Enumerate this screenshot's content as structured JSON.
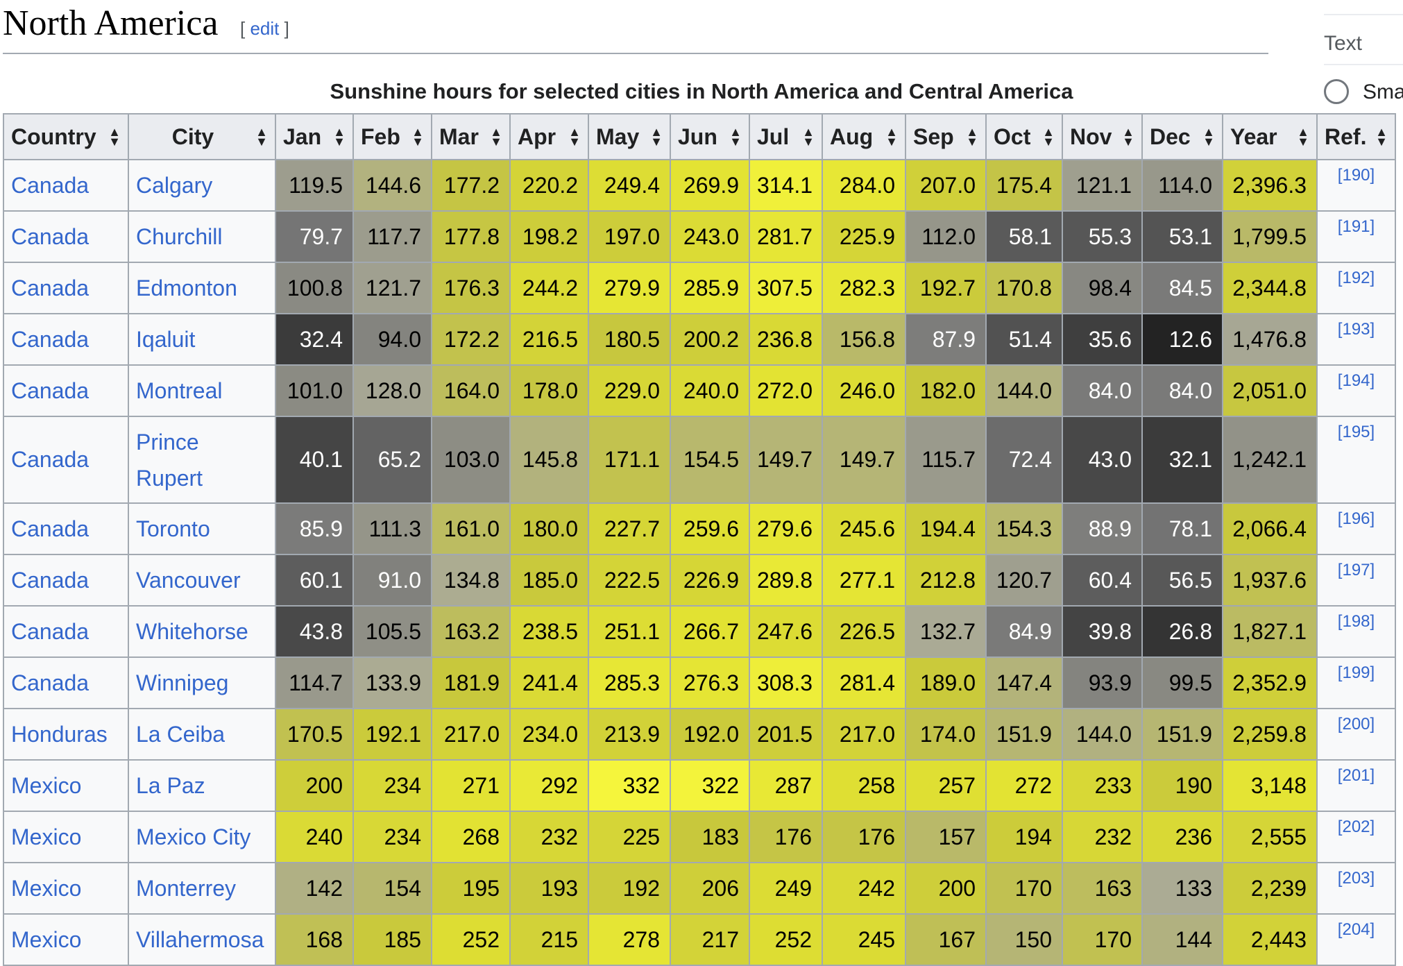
{
  "section": {
    "title": "North America",
    "edit_open": "[ ",
    "edit_label": "edit",
    "edit_close": " ]"
  },
  "side": {
    "text_label": "Text",
    "small_label": "Sma"
  },
  "table": {
    "caption": "Sunshine hours for selected cities in North America and Central America",
    "headers": [
      "Country",
      "City",
      "Jan",
      "Feb",
      "Mar",
      "Apr",
      "May",
      "Jun",
      "Jul",
      "Aug",
      "Sep",
      "Oct",
      "Nov",
      "Dec",
      "Year",
      "Ref."
    ],
    "rows": [
      {
        "country": "Canada",
        "city": "Calgary",
        "values": [
          "119.5",
          "144.6",
          "177.2",
          "220.2",
          "249.4",
          "269.9",
          "314.1",
          "284.0",
          "207.0",
          "175.4",
          "121.1",
          "114.0",
          "2,396.3"
        ],
        "ref": "[190]"
      },
      {
        "country": "Canada",
        "city": "Churchill",
        "values": [
          "79.7",
          "117.7",
          "177.8",
          "198.2",
          "197.0",
          "243.0",
          "281.7",
          "225.9",
          "112.0",
          "58.1",
          "55.3",
          "53.1",
          "1,799.5"
        ],
        "ref": "[191]"
      },
      {
        "country": "Canada",
        "city": "Edmonton",
        "values": [
          "100.8",
          "121.7",
          "176.3",
          "244.2",
          "279.9",
          "285.9",
          "307.5",
          "282.3",
          "192.7",
          "170.8",
          "98.4",
          "84.5",
          "2,344.8"
        ],
        "ref": "[192]"
      },
      {
        "country": "Canada",
        "city": "Iqaluit",
        "values": [
          "32.4",
          "94.0",
          "172.2",
          "216.5",
          "180.5",
          "200.2",
          "236.8",
          "156.8",
          "87.9",
          "51.4",
          "35.6",
          "12.6",
          "1,476.8"
        ],
        "ref": "[193]"
      },
      {
        "country": "Canada",
        "city": "Montreal",
        "values": [
          "101.0",
          "128.0",
          "164.0",
          "178.0",
          "229.0",
          "240.0",
          "272.0",
          "246.0",
          "182.0",
          "144.0",
          "84.0",
          "84.0",
          "2,051.0"
        ],
        "ref": "[194]"
      },
      {
        "country": "Canada",
        "city": "Prince Rupert",
        "city_line1": "Prince",
        "city_line2": "Rupert",
        "values": [
          "40.1",
          "65.2",
          "103.0",
          "145.8",
          "171.1",
          "154.5",
          "149.7",
          "149.7",
          "115.7",
          "72.4",
          "43.0",
          "32.1",
          "1,242.1"
        ],
        "ref": "[195]"
      },
      {
        "country": "Canada",
        "city": "Toronto",
        "values": [
          "85.9",
          "111.3",
          "161.0",
          "180.0",
          "227.7",
          "259.6",
          "279.6",
          "245.6",
          "194.4",
          "154.3",
          "88.9",
          "78.1",
          "2,066.4"
        ],
        "ref": "[196]"
      },
      {
        "country": "Canada",
        "city": "Vancouver",
        "values": [
          "60.1",
          "91.0",
          "134.8",
          "185.0",
          "222.5",
          "226.9",
          "289.8",
          "277.1",
          "212.8",
          "120.7",
          "60.4",
          "56.5",
          "1,937.6"
        ],
        "ref": "[197]"
      },
      {
        "country": "Canada",
        "city": "Whitehorse",
        "values": [
          "43.8",
          "105.5",
          "163.2",
          "238.5",
          "251.1",
          "266.7",
          "247.6",
          "226.5",
          "132.7",
          "84.9",
          "39.8",
          "26.8",
          "1,827.1"
        ],
        "ref": "[198]"
      },
      {
        "country": "Canada",
        "city": "Winnipeg",
        "values": [
          "114.7",
          "133.9",
          "181.9",
          "241.4",
          "285.3",
          "276.3",
          "308.3",
          "281.4",
          "189.0",
          "147.4",
          "93.9",
          "99.5",
          "2,352.9"
        ],
        "ref": "[199]"
      },
      {
        "country": "Honduras",
        "city": "La Ceiba",
        "values": [
          "170.5",
          "192.1",
          "217.0",
          "234.0",
          "213.9",
          "192.0",
          "201.5",
          "217.0",
          "174.0",
          "151.9",
          "144.0",
          "151.9",
          "2,259.8"
        ],
        "ref": "[200]"
      },
      {
        "country": "Mexico",
        "city": "La Paz",
        "values": [
          "200",
          "234",
          "271",
          "292",
          "332",
          "322",
          "287",
          "258",
          "257",
          "272",
          "233",
          "190",
          "3,148"
        ],
        "ref": "[201]"
      },
      {
        "country": "Mexico",
        "city": "Mexico City",
        "values": [
          "240",
          "234",
          "268",
          "232",
          "225",
          "183",
          "176",
          "176",
          "157",
          "194",
          "232",
          "236",
          "2,555"
        ],
        "ref": "[202]"
      },
      {
        "country": "Mexico",
        "city": "Monterrey",
        "values": [
          "142",
          "154",
          "195",
          "193",
          "192",
          "206",
          "249",
          "242",
          "200",
          "170",
          "163",
          "133",
          "2,239"
        ],
        "ref": "[203]"
      },
      {
        "country": "Mexico",
        "city": "Villahermosa",
        "values": [
          "168",
          "185",
          "252",
          "215",
          "278",
          "217",
          "252",
          "245",
          "167",
          "150",
          "170",
          "144",
          "2,443"
        ],
        "ref": "[204]"
      }
    ]
  }
}
